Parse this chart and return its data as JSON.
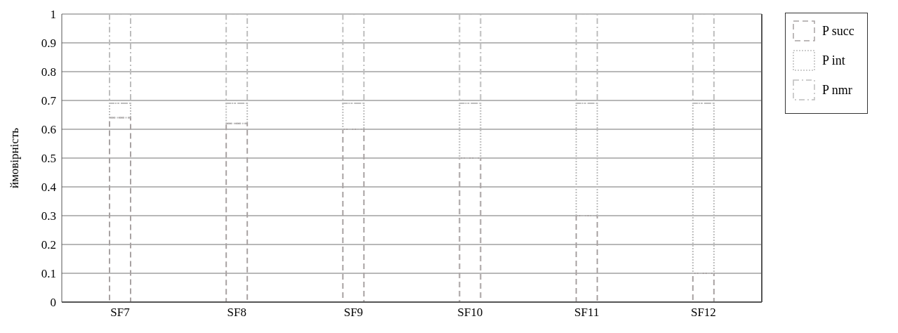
{
  "chart_data": {
    "type": "bar",
    "stacked": true,
    "ylabel": "ймовірність",
    "categories": [
      "SF7",
      "SF8",
      "SF9",
      "SF10",
      "SF11",
      "SF12"
    ],
    "series": [
      {
        "name": "P succ",
        "color": "#a8a2a2",
        "line_style": "dashed",
        "values": [
          0.64,
          0.62,
          0.6,
          0.5,
          0.3,
          0.1
        ]
      },
      {
        "name": "P int",
        "color": "#bdbdbd",
        "line_style": "dotted",
        "values": [
          0.05,
          0.07,
          0.09,
          0.19,
          0.39,
          0.59
        ]
      },
      {
        "name": "P nmr",
        "color": "#bdbdbd",
        "line_style": "dashdot",
        "values": [
          0.31,
          0.31,
          0.31,
          0.31,
          0.31,
          0.31
        ]
      }
    ],
    "ylim": [
      0,
      1
    ],
    "yticks": [
      0,
      0.1,
      0.2,
      0.3,
      0.4,
      0.5,
      0.6,
      0.7,
      0.8,
      0.9,
      1
    ],
    "grid": "y",
    "legend": "top right"
  }
}
